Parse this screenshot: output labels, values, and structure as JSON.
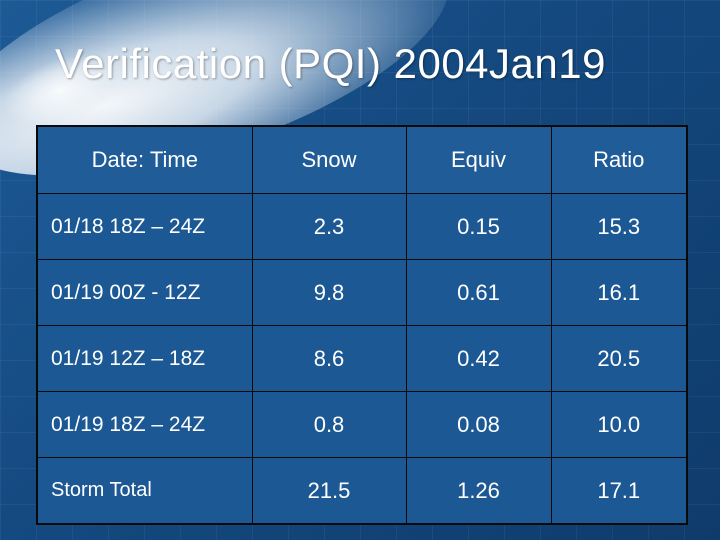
{
  "title": "Verification (PQI) 2004Jan19",
  "table": {
    "headers": [
      "Date: Time",
      "Snow",
      "Equiv",
      "Ratio"
    ],
    "rows": [
      [
        "01/18 18Z – 24Z",
        "2.3",
        "0.15",
        "15.3"
      ],
      [
        "01/19 00Z - 12Z",
        "9.8",
        "0.61",
        "16.1"
      ],
      [
        "01/19 12Z – 18Z",
        "8.6",
        "0.42",
        "20.5"
      ],
      [
        "01/19 18Z – 24Z",
        "0.8",
        "0.08",
        "10.0"
      ],
      [
        "Storm Total",
        "21.5",
        "1.26",
        "17.1"
      ]
    ]
  },
  "colors": {
    "background": "#14497f",
    "cell": "#1c5894",
    "border": "#0a0a0a",
    "text": "#ffffff"
  }
}
